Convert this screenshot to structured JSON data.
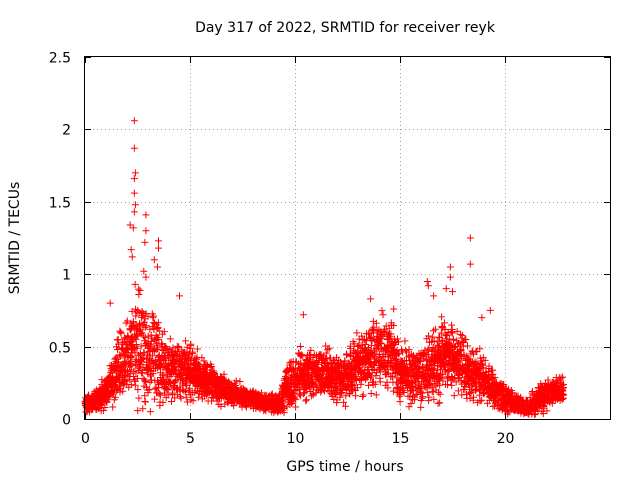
{
  "chart_data": {
    "type": "scatter",
    "title": "Day 317 of 2022, SRMTID for receiver reyk",
    "xlabel": "GPS time / hours",
    "ylabel": "SRMTID / TECUs",
    "xlim": [
      0,
      25
    ],
    "ylim": [
      0,
      2.5
    ],
    "xticks": [
      0,
      5,
      10,
      15,
      20
    ],
    "xtick_labels": [
      "0",
      "5",
      "10",
      "15",
      "20"
    ],
    "yticks": [
      0,
      0.5,
      1,
      1.5,
      2,
      2.5
    ],
    "ytick_labels": [
      "0",
      "0.5",
      "1",
      "1.5",
      "2",
      "2.5"
    ],
    "grid": true,
    "marker": "+",
    "color": "#ff0000",
    "series": [
      {
        "name": "SRMTID",
        "profile": {
          "x": [
            0.0,
            0.5,
            1.0,
            1.5,
            2.0,
            2.3,
            2.5,
            2.8,
            3.0,
            3.3,
            3.6,
            4.0,
            4.5,
            5.0,
            5.5,
            6.0,
            6.5,
            7.0,
            7.5,
            8.0,
            8.5,
            9.0,
            9.3,
            9.5,
            10.0,
            10.5,
            11.0,
            11.5,
            12.0,
            12.5,
            13.0,
            13.5,
            14.0,
            14.5,
            15.0,
            15.5,
            16.0,
            16.5,
            17.0,
            17.5,
            18.0,
            18.3,
            18.6,
            19.0,
            19.5,
            20.0,
            20.5,
            21.0,
            21.5,
            22.0,
            22.5,
            22.8
          ],
          "median": [
            0.11,
            0.12,
            0.18,
            0.33,
            0.36,
            0.52,
            0.55,
            0.48,
            0.42,
            0.45,
            0.38,
            0.35,
            0.33,
            0.32,
            0.29,
            0.25,
            0.2,
            0.18,
            0.16,
            0.14,
            0.12,
            0.1,
            0.1,
            0.2,
            0.27,
            0.3,
            0.3,
            0.32,
            0.28,
            0.3,
            0.38,
            0.42,
            0.44,
            0.48,
            0.32,
            0.3,
            0.3,
            0.36,
            0.42,
            0.45,
            0.4,
            0.26,
            0.3,
            0.28,
            0.2,
            0.14,
            0.1,
            0.07,
            0.12,
            0.17,
            0.2,
            0.18
          ],
          "spread": [
            0.05,
            0.06,
            0.1,
            0.18,
            0.2,
            0.32,
            0.35,
            0.3,
            0.25,
            0.25,
            0.22,
            0.18,
            0.16,
            0.14,
            0.12,
            0.1,
            0.08,
            0.07,
            0.06,
            0.05,
            0.05,
            0.05,
            0.08,
            0.12,
            0.14,
            0.15,
            0.14,
            0.14,
            0.13,
            0.14,
            0.16,
            0.18,
            0.2,
            0.2,
            0.16,
            0.15,
            0.15,
            0.18,
            0.2,
            0.18,
            0.18,
            0.14,
            0.16,
            0.13,
            0.1,
            0.08,
            0.06,
            0.05,
            0.07,
            0.08,
            0.08,
            0.08
          ]
        },
        "peaks": [
          {
            "x": 2.35,
            "y": 2.06
          },
          {
            "x": 2.35,
            "y": 1.87
          },
          {
            "x": 2.4,
            "y": 1.7
          },
          {
            "x": 2.35,
            "y": 1.66
          },
          {
            "x": 2.35,
            "y": 1.56
          },
          {
            "x": 2.4,
            "y": 1.48
          },
          {
            "x": 2.35,
            "y": 1.43
          },
          {
            "x": 2.9,
            "y": 1.41
          },
          {
            "x": 2.15,
            "y": 1.34
          },
          {
            "x": 2.3,
            "y": 1.32
          },
          {
            "x": 2.9,
            "y": 1.3
          },
          {
            "x": 2.85,
            "y": 1.22
          },
          {
            "x": 3.5,
            "y": 1.23
          },
          {
            "x": 3.5,
            "y": 1.18
          },
          {
            "x": 2.2,
            "y": 1.17
          },
          {
            "x": 2.25,
            "y": 1.12
          },
          {
            "x": 3.3,
            "y": 1.1
          },
          {
            "x": 3.45,
            "y": 1.05
          },
          {
            "x": 2.8,
            "y": 1.02
          },
          {
            "x": 2.9,
            "y": 0.98
          },
          {
            "x": 18.35,
            "y": 1.25
          },
          {
            "x": 18.35,
            "y": 1.07
          },
          {
            "x": 17.4,
            "y": 1.05
          },
          {
            "x": 17.4,
            "y": 0.98
          },
          {
            "x": 16.3,
            "y": 0.95
          },
          {
            "x": 16.35,
            "y": 0.92
          },
          {
            "x": 17.2,
            "y": 0.9
          },
          {
            "x": 16.6,
            "y": 0.85
          },
          {
            "x": 17.5,
            "y": 0.88
          },
          {
            "x": 13.6,
            "y": 0.83
          },
          {
            "x": 4.5,
            "y": 0.85
          },
          {
            "x": 1.2,
            "y": 0.8
          },
          {
            "x": 19.3,
            "y": 0.75
          },
          {
            "x": 18.9,
            "y": 0.7
          },
          {
            "x": 14.7,
            "y": 0.76
          },
          {
            "x": 10.4,
            "y": 0.72
          }
        ]
      }
    ]
  }
}
